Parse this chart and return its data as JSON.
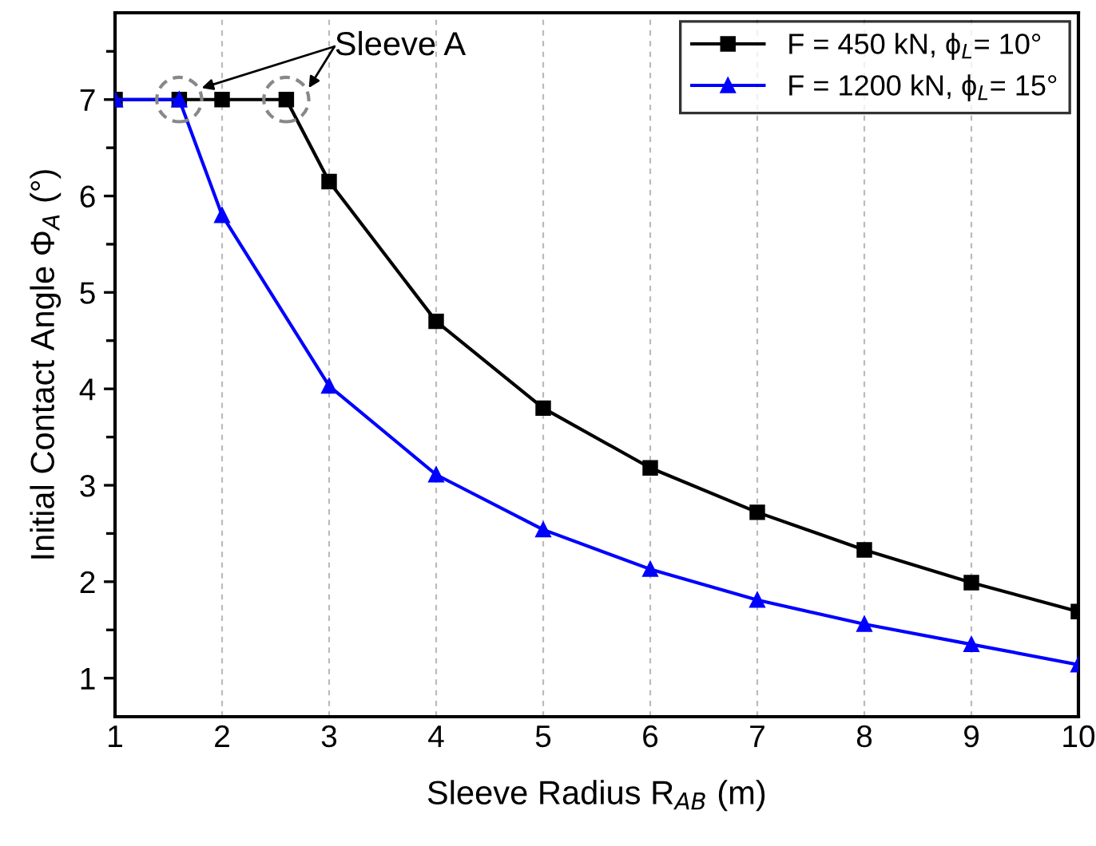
{
  "chart_data": {
    "type": "line",
    "xlabel": "Sleeve Radius R$_{AB}$ (m)",
    "ylabel": "Initial Contact Angle Φ$_{A}$ (°)",
    "xlim": [
      1,
      10
    ],
    "xticks": [
      1,
      2,
      3,
      4,
      5,
      6,
      7,
      8,
      9,
      10
    ],
    "ylim": [
      0.6,
      7.9
    ],
    "yticks": [
      1,
      2,
      3,
      4,
      5,
      6,
      7
    ],
    "grid": "x",
    "legend": "top right",
    "line_style": "solid",
    "series": [
      {
        "name": "F = 450 kN, ϕ$_{L}$= 10°",
        "color": "#000000",
        "marker": "square",
        "x": [
          1,
          1.6,
          2,
          2.6,
          3,
          4,
          5,
          6,
          7,
          8,
          9,
          10
        ],
        "values": [
          7,
          7,
          7,
          7,
          6.15,
          4.7,
          3.8,
          3.18,
          2.72,
          2.33,
          1.99,
          1.69
        ]
      },
      {
        "name": "F = 1200 kN, ϕ$_{L}$= 15°",
        "color": "#0000ff",
        "marker": "triangle",
        "x": [
          1,
          1.6,
          2,
          3,
          4,
          5,
          6,
          7,
          8,
          9,
          10
        ],
        "values": [
          7,
          7,
          5.8,
          4.03,
          3.11,
          2.54,
          2.13,
          1.81,
          1.56,
          1.35,
          1.14
        ]
      }
    ],
    "annotations": [
      {
        "text": "Sleeve A",
        "x": 2.6,
        "y": 7
      }
    ]
  }
}
